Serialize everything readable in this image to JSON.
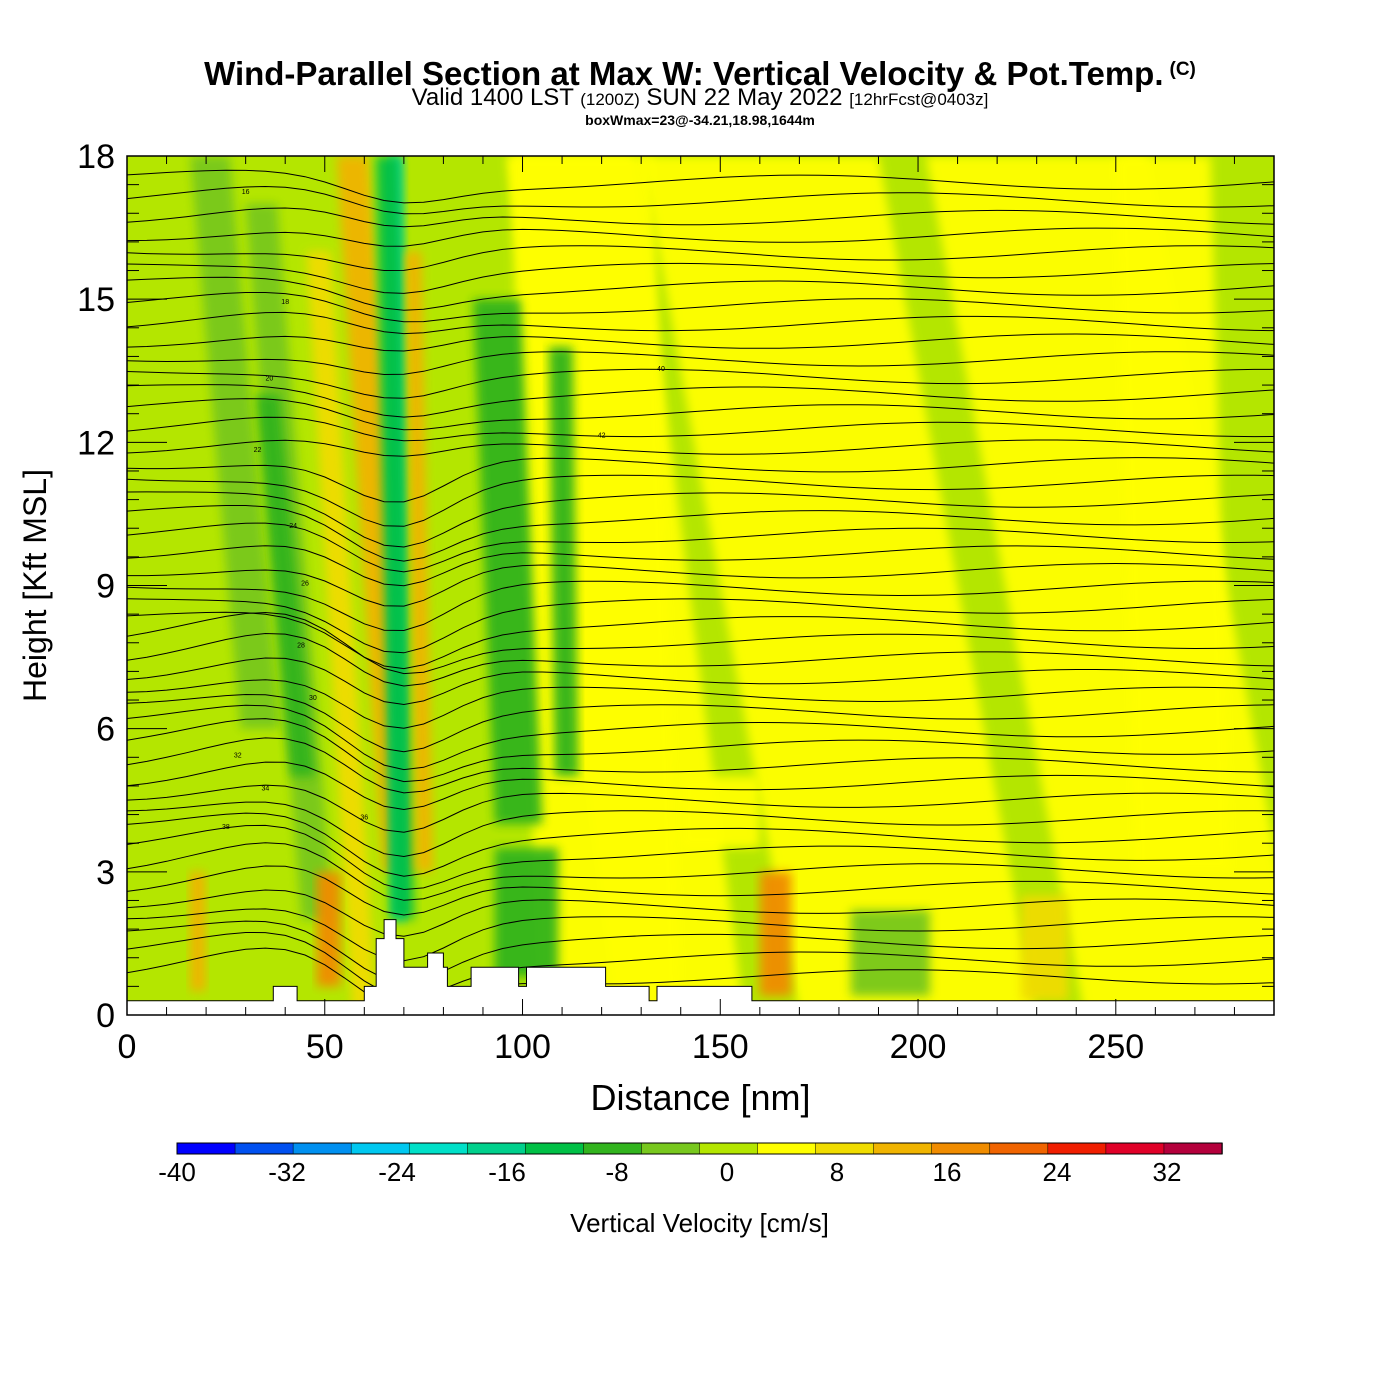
{
  "header": {
    "title": "Wind-Parallel Section at Max W: Vertical Velocity & Pot.Temp.",
    "copyright_mark": "(C)",
    "valid_prefix": "Valid 1400 LST",
    "valid_utc": "(1200Z)",
    "valid_date": "SUN 22 May 2022",
    "forecast": "[12hrFcst@0403z]",
    "box_info": "boxWmax=23@-34.21,18.98,1644m"
  },
  "chart_data": {
    "type": "heatmap",
    "xlabel": "Distance [nm]",
    "ylabel": "Height [Kft MSL]",
    "xlim": [
      0,
      290
    ],
    "ylim": [
      0,
      18
    ],
    "xticks": [
      0,
      50,
      100,
      150,
      200,
      250
    ],
    "yticks": [
      0,
      3,
      6,
      9,
      12,
      15,
      18
    ],
    "colorbar": {
      "label": "Vertical Velocity [cm/s]",
      "range": [
        -40,
        36
      ],
      "step": 4,
      "tick_labels": [
        "-40",
        "-32",
        "-24",
        "-16",
        "-8",
        "0",
        "8",
        "16",
        "24",
        "32"
      ],
      "tick_values": [
        -40,
        -32,
        -24,
        -16,
        -8,
        0,
        8,
        16,
        24,
        32
      ],
      "colors": [
        "#0000ff",
        "#0050f0",
        "#0090f0",
        "#00c8f0",
        "#00e0c8",
        "#00d08c",
        "#00c046",
        "#32b41e",
        "#78c81e",
        "#b4e600",
        "#ffff00",
        "#f0dc00",
        "#f0b400",
        "#f08c00",
        "#f06400",
        "#f01e00",
        "#e00028",
        "#b4003c"
      ]
    },
    "field_features": [
      {
        "kind": "updraft",
        "x": 70,
        "ylim": [
          2,
          8
        ],
        "w_max": 23
      },
      {
        "kind": "downdraft",
        "x": 68,
        "ylim": [
          1.5,
          18
        ],
        "w_min": -24
      },
      {
        "kind": "updraft",
        "x": 164,
        "ylim": [
          0.5,
          3
        ],
        "w_max": 14
      },
      {
        "kind": "downdraft",
        "x": 100,
        "ylim": [
          1,
          3.5
        ],
        "w_min": -10
      }
    ],
    "theta_contours": {
      "label": "Potential Temperature",
      "label_values": [
        "16",
        "18",
        "20",
        "22",
        "24",
        "26",
        "28",
        "30",
        "32",
        "34",
        "36",
        "38",
        "40",
        "42"
      ]
    }
  }
}
